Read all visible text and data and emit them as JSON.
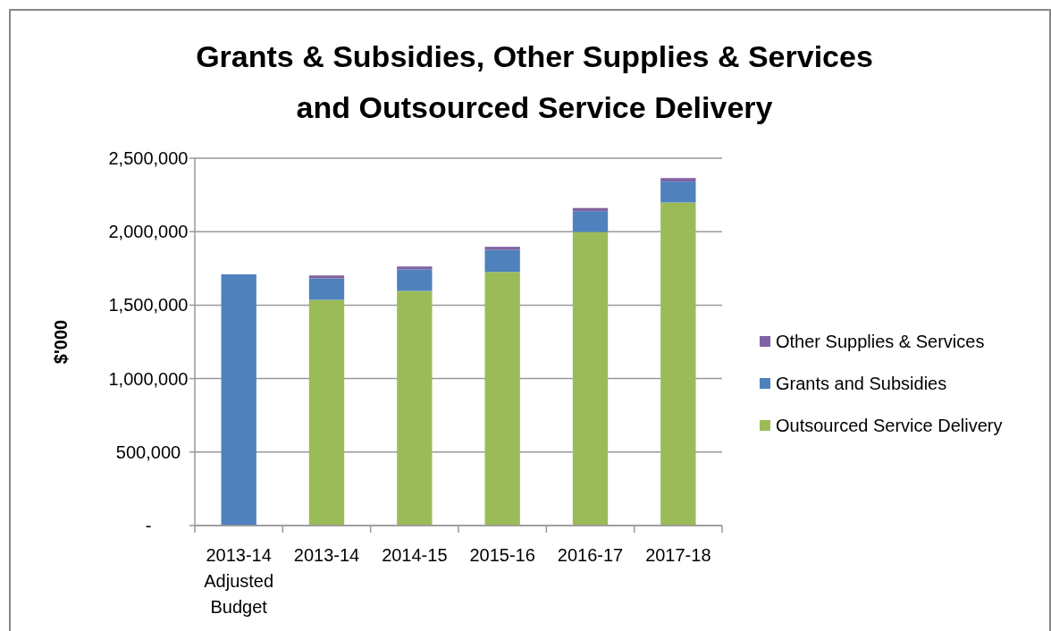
{
  "chart_data": {
    "type": "bar",
    "title": "Grants & Subsidies, Other Supplies & Services\nand Outsourced Service Delivery",
    "ylabel": "$'000",
    "categories": [
      "2013-14\nAdjusted\nBudget",
      "2013-14",
      "2014-15",
      "2015-16",
      "2016-17",
      "2017-18"
    ],
    "stacked": true,
    "series": [
      {
        "name": "Outsourced Service Delivery",
        "color": "#9bbb59",
        "values": [
          null,
          1536000,
          1597000,
          1726000,
          1998000,
          2199000
        ]
      },
      {
        "name": "Grants and Subsidies",
        "color": "#4f81bd",
        "values": [
          1710000,
          146000,
          146000,
          150000,
          142000,
          142000
        ]
      },
      {
        "name": "Other Supplies & Services",
        "color": "#8064a2",
        "values": [
          null,
          20000,
          20000,
          21000,
          21000,
          24000
        ]
      }
    ],
    "ylim": [
      0,
      2500000
    ],
    "yticks": [
      {
        "value": 0,
        "label": "-"
      },
      {
        "value": 500000,
        "label": "500,000"
      },
      {
        "value": 1000000,
        "label": "1,000,000"
      },
      {
        "value": 1500000,
        "label": "1,500,000"
      },
      {
        "value": 2000000,
        "label": "2,000,000"
      },
      {
        "value": 2500000,
        "label": "2,500,000"
      }
    ],
    "grid": "y",
    "legend": "right"
  }
}
